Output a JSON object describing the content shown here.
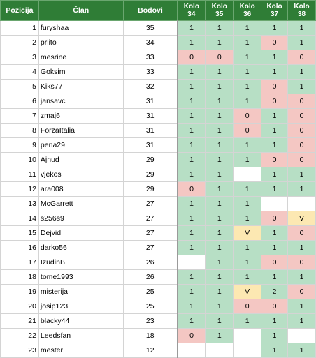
{
  "headers": {
    "pozicija": "Pozicija",
    "clan": "Član",
    "bodovi": "Bodovi",
    "kola": [
      {
        "l1": "Kolo",
        "l2": "34"
      },
      {
        "l1": "Kolo",
        "l2": "35"
      },
      {
        "l1": "Kolo",
        "l2": "36"
      },
      {
        "l1": "Kolo",
        "l2": "37"
      },
      {
        "l1": "Kolo",
        "l2": "38"
      }
    ]
  },
  "colors": {
    "header_bg": "#2f7d36",
    "correct": "#b7dfc5",
    "wrong": "#f4c7c3",
    "draw": "#fce8b2",
    "empty": "#ffffff"
  },
  "rows": [
    {
      "pos": "1",
      "name": "furyshaa",
      "pts": "35",
      "k": [
        "1",
        "1",
        "1",
        "1",
        "1"
      ],
      "c": [
        "g",
        "g",
        "g",
        "g",
        "g"
      ]
    },
    {
      "pos": "2",
      "name": "prlito",
      "pts": "34",
      "k": [
        "1",
        "1",
        "1",
        "0",
        "1"
      ],
      "c": [
        "g",
        "g",
        "g",
        "r",
        "g"
      ]
    },
    {
      "pos": "3",
      "name": "mesrine",
      "pts": "33",
      "k": [
        "0",
        "0",
        "1",
        "1",
        "0"
      ],
      "c": [
        "r",
        "r",
        "g",
        "g",
        "r"
      ]
    },
    {
      "pos": "4",
      "name": "Goksim",
      "pts": "33",
      "k": [
        "1",
        "1",
        "1",
        "1",
        "1"
      ],
      "c": [
        "g",
        "g",
        "g",
        "g",
        "g"
      ]
    },
    {
      "pos": "5",
      "name": "Kiks77",
      "pts": "32",
      "k": [
        "1",
        "1",
        "1",
        "0",
        "1"
      ],
      "c": [
        "g",
        "g",
        "g",
        "r",
        "g"
      ]
    },
    {
      "pos": "6",
      "name": "jansavc",
      "pts": "31",
      "k": [
        "1",
        "1",
        "1",
        "0",
        "0"
      ],
      "c": [
        "g",
        "g",
        "g",
        "r",
        "r"
      ]
    },
    {
      "pos": "7",
      "name": "zmaj6",
      "pts": "31",
      "k": [
        "1",
        "1",
        "0",
        "1",
        "0"
      ],
      "c": [
        "g",
        "g",
        "r",
        "g",
        "r"
      ]
    },
    {
      "pos": "8",
      "name": "ForzaItalia",
      "pts": "31",
      "k": [
        "1",
        "1",
        "0",
        "1",
        "0"
      ],
      "c": [
        "g",
        "g",
        "r",
        "g",
        "r"
      ]
    },
    {
      "pos": "9",
      "name": "pena29",
      "pts": "31",
      "k": [
        "1",
        "1",
        "1",
        "1",
        "0"
      ],
      "c": [
        "g",
        "g",
        "g",
        "g",
        "r"
      ]
    },
    {
      "pos": "10",
      "name": "Ajnud",
      "pts": "29",
      "k": [
        "1",
        "1",
        "1",
        "0",
        "0"
      ],
      "c": [
        "g",
        "g",
        "g",
        "r",
        "r"
      ]
    },
    {
      "pos": "11",
      "name": "vjekos",
      "pts": "29",
      "k": [
        "1",
        "1",
        "",
        "1",
        "1"
      ],
      "c": [
        "g",
        "g",
        "w",
        "g",
        "g"
      ]
    },
    {
      "pos": "12",
      "name": "ara008",
      "pts": "29",
      "k": [
        "0",
        "1",
        "1",
        "1",
        "1"
      ],
      "c": [
        "r",
        "g",
        "g",
        "g",
        "g"
      ]
    },
    {
      "pos": "13",
      "name": "McGarrett",
      "pts": "27",
      "k": [
        "1",
        "1",
        "1",
        "",
        ""
      ],
      "c": [
        "g",
        "g",
        "g",
        "w",
        "w"
      ]
    },
    {
      "pos": "14",
      "name": "s256s9",
      "pts": "27",
      "k": [
        "1",
        "1",
        "1",
        "0",
        "V"
      ],
      "c": [
        "g",
        "g",
        "g",
        "r",
        "y"
      ]
    },
    {
      "pos": "15",
      "name": "Dejvid",
      "pts": "27",
      "k": [
        "1",
        "1",
        "V",
        "1",
        "0"
      ],
      "c": [
        "g",
        "g",
        "y",
        "g",
        "r"
      ]
    },
    {
      "pos": "16",
      "name": "darko56",
      "pts": "27",
      "k": [
        "1",
        "1",
        "1",
        "1",
        "1"
      ],
      "c": [
        "g",
        "g",
        "g",
        "g",
        "g"
      ]
    },
    {
      "pos": "17",
      "name": "IzudinB",
      "pts": "26",
      "k": [
        "",
        "1",
        "1",
        "0",
        "0"
      ],
      "c": [
        "w",
        "g",
        "g",
        "r",
        "r"
      ]
    },
    {
      "pos": "18",
      "name": "tome1993",
      "pts": "26",
      "k": [
        "1",
        "1",
        "1",
        "1",
        "1"
      ],
      "c": [
        "g",
        "g",
        "g",
        "g",
        "g"
      ]
    },
    {
      "pos": "19",
      "name": "misterija",
      "pts": "25",
      "k": [
        "1",
        "1",
        "V",
        "2",
        "0"
      ],
      "c": [
        "g",
        "g",
        "y",
        "g",
        "r"
      ]
    },
    {
      "pos": "20",
      "name": "josip123",
      "pts": "25",
      "k": [
        "1",
        "1",
        "0",
        "0",
        "1"
      ],
      "c": [
        "g",
        "g",
        "r",
        "r",
        "g"
      ]
    },
    {
      "pos": "21",
      "name": "blacky44",
      "pts": "23",
      "k": [
        "1",
        "1",
        "1",
        "1",
        "1"
      ],
      "c": [
        "g",
        "g",
        "g",
        "g",
        "g"
      ]
    },
    {
      "pos": "22",
      "name": "Leedsfan",
      "pts": "18",
      "k": [
        "0",
        "1",
        "",
        "1",
        ""
      ],
      "c": [
        "r",
        "g",
        "w",
        "g",
        "w"
      ]
    },
    {
      "pos": "23",
      "name": "mester",
      "pts": "12",
      "k": [
        "",
        "",
        "",
        "1",
        "1"
      ],
      "c": [
        "w",
        "w",
        "w",
        "g",
        "g"
      ]
    }
  ]
}
